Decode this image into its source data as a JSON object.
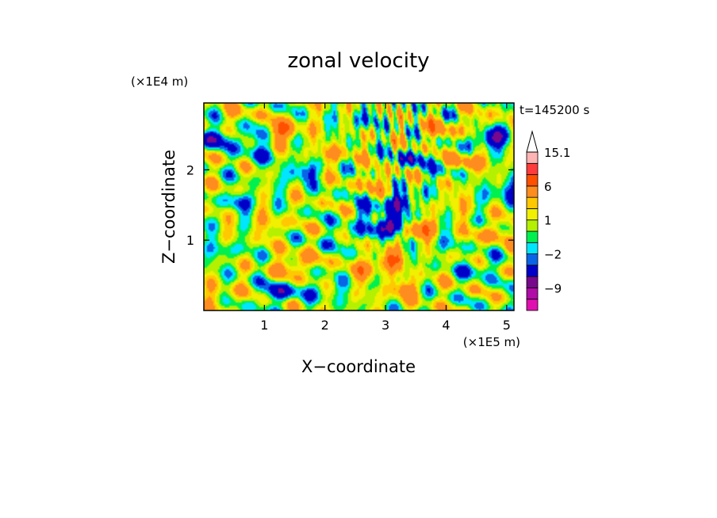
{
  "chart_data": {
    "type": "heatmap",
    "title": "zonal velocity",
    "xlabel": "X−coordinate",
    "ylabel": "Z−coordinate",
    "x_scale_label": "(×1E5 m)",
    "y_scale_label": "(×1E4 m)",
    "time_label": "t=145200 s",
    "x_range": [
      0,
      5.12
    ],
    "y_range": [
      0,
      2.95
    ],
    "x_ticks": [
      1,
      2,
      3,
      4,
      5
    ],
    "x_tick_labels": [
      "1",
      "2",
      "3",
      "4",
      "5"
    ],
    "y_ticks": [
      1,
      2
    ],
    "y_tick_labels": [
      "1",
      "2"
    ],
    "colorbar": {
      "levels": [
        -15,
        -12,
        -9,
        -6,
        -3,
        -2,
        -1,
        0,
        1,
        2,
        3,
        6,
        9,
        12,
        15.1
      ],
      "colors": [
        "#e010b0",
        "#b00ca8",
        "#78088c",
        "#0000c8",
        "#0a64e6",
        "#00e6ff",
        "#00f050",
        "#b4f000",
        "#f0f000",
        "#ffc800",
        "#ff8c1e",
        "#ff5000",
        "#ff3c3c",
        "#ffb4b4"
      ],
      "labeled_levels": [
        15.1,
        6,
        1,
        -2,
        -9
      ],
      "labels": [
        "15.1",
        "6",
        "1",
        "−2",
        "−9"
      ],
      "extend": "max"
    },
    "features": [
      {
        "x": 3.1,
        "z": 1.2,
        "value": -9.5
      },
      {
        "x": 3.25,
        "z": 1.55,
        "value": -6
      },
      {
        "x": 3.5,
        "z": 1.15,
        "value": 6.5
      },
      {
        "x": 3.05,
        "z": 0.7,
        "value": 5
      },
      {
        "x": 3.4,
        "z": 2.15,
        "value": -4
      },
      {
        "x": 2.9,
        "z": 1.85,
        "value": 3
      },
      {
        "x": 2.7,
        "z": 1.4,
        "value": -3
      },
      {
        "x": 1.3,
        "z": 2.55,
        "value": 5.5
      },
      {
        "x": 0.5,
        "z": 2.75,
        "value": 1.5
      },
      {
        "x": 0.15,
        "z": 2.45,
        "value": -5
      },
      {
        "x": 4.75,
        "z": 2.45,
        "value": -7
      },
      {
        "x": 4.5,
        "z": 2.65,
        "value": 2
      },
      {
        "x": 4.95,
        "z": 1.7,
        "value": -4
      },
      {
        "x": 4.75,
        "z": 1.1,
        "value": 3
      },
      {
        "x": 4.5,
        "z": 0.6,
        "value": -3
      },
      {
        "x": 3.8,
        "z": 2.55,
        "value": 3
      },
      {
        "x": 2.2,
        "z": 2.25,
        "value": 2.5
      },
      {
        "x": 1.6,
        "z": 1.95,
        "value": -4
      },
      {
        "x": 0.6,
        "z": 1.55,
        "value": -3
      },
      {
        "x": 1.1,
        "z": 1.2,
        "value": 2
      },
      {
        "x": 1.5,
        "z": 0.65,
        "value": 4
      },
      {
        "x": 2.0,
        "z": 0.3,
        "value": -2.5
      },
      {
        "x": 0.3,
        "z": 0.2,
        "value": 2
      },
      {
        "x": 0.35,
        "z": 0.85,
        "value": -2
      },
      {
        "x": 1.25,
        "z": 0.25,
        "value": -5
      },
      {
        "x": 2.35,
        "z": 1.05,
        "value": -2.5
      },
      {
        "x": 4.15,
        "z": 1.55,
        "value": 1.5
      },
      {
        "x": 3.9,
        "z": 0.9,
        "value": -1.5
      },
      {
        "x": 0.9,
        "z": 2.2,
        "value": -2.5
      },
      {
        "x": 2.6,
        "z": 2.7,
        "value": -2.5
      },
      {
        "x": 3.3,
        "z": 0.3,
        "value": 3.5
      },
      {
        "x": 4.0,
        "z": 2.0,
        "value": -2.5
      },
      {
        "x": 0.8,
        "z": 2.45,
        "value": -3.5
      },
      {
        "x": 2.6,
        "z": 0.55,
        "value": 2.5
      },
      {
        "x": 4.3,
        "z": 2.1,
        "value": 4.5
      }
    ]
  }
}
